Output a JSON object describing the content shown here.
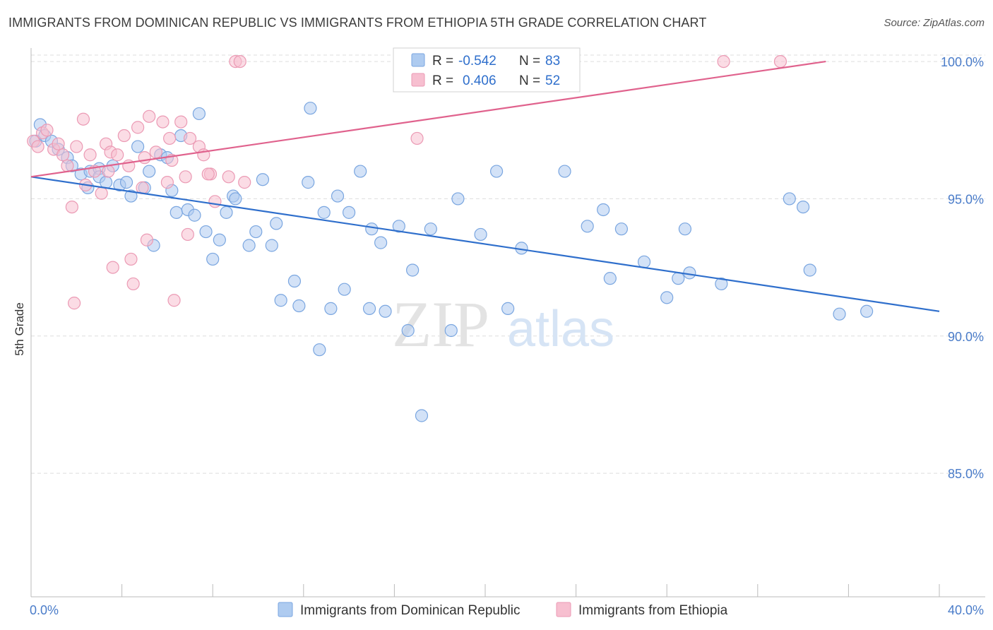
{
  "title": "IMMIGRANTS FROM DOMINICAN REPUBLIC VS IMMIGRANTS FROM ETHIOPIA 5TH GRADE CORRELATION CHART",
  "source": "Source: ZipAtlas.com",
  "watermark": {
    "zip": "ZIP",
    "atlas": "atlas"
  },
  "colors": {
    "blue_fill": "#aecbf0",
    "blue_stroke": "#7aa6e0",
    "blue_line": "#2f6fcc",
    "pink_fill": "#f7bfd0",
    "pink_stroke": "#eb9ab4",
    "pink_line": "#e0628d",
    "axis_text": "#4a7cc9",
    "grid": "#dddddd"
  },
  "chart_data": {
    "type": "scatter",
    "title": "IMMIGRANTS FROM DOMINICAN REPUBLIC VS IMMIGRANTS FROM ETHIOPIA 5TH GRADE CORRELATION CHART",
    "xlabel": "",
    "ylabel": "5th Grade",
    "xlim": [
      0,
      40
    ],
    "ylim": [
      80.5,
      100.8
    ],
    "x_tick_labels": [
      "0.0%",
      "40.0%"
    ],
    "y_ticks": [
      85,
      90,
      95,
      100
    ],
    "y_tick_labels": [
      "85.0%",
      "90.0%",
      "95.0%",
      "100.0%"
    ],
    "grid": true,
    "legend_position": "top-center",
    "stats": [
      {
        "r_label": "R =",
        "r_value": "-0.542",
        "n_label": "N =",
        "n_value": "83"
      },
      {
        "r_label": "R =",
        "r_value": "0.406",
        "n_label": "N =",
        "n_value": "52"
      }
    ],
    "series": [
      {
        "name": "Immigrants from Dominican Republic",
        "color": "#aecbf0",
        "trend": {
          "x": [
            0,
            40
          ],
          "y": [
            95.8,
            90.9
          ]
        },
        "points": [
          [
            0.2,
            97.1
          ],
          [
            0.4,
            97.7
          ],
          [
            0.6,
            97.3
          ],
          [
            0.9,
            97.1
          ],
          [
            1.2,
            96.8
          ],
          [
            1.6,
            96.5
          ],
          [
            1.8,
            96.2
          ],
          [
            2.2,
            95.9
          ],
          [
            2.5,
            95.4
          ],
          [
            2.6,
            96.0
          ],
          [
            3.0,
            96.1
          ],
          [
            3.0,
            95.8
          ],
          [
            3.3,
            95.6
          ],
          [
            3.6,
            96.2
          ],
          [
            3.9,
            95.5
          ],
          [
            4.2,
            95.6
          ],
          [
            4.4,
            95.1
          ],
          [
            4.7,
            96.9
          ],
          [
            5.0,
            95.4
          ],
          [
            5.2,
            96.0
          ],
          [
            5.4,
            93.3
          ],
          [
            5.7,
            96.6
          ],
          [
            6.0,
            96.5
          ],
          [
            6.2,
            95.3
          ],
          [
            6.4,
            94.5
          ],
          [
            6.6,
            97.3
          ],
          [
            6.9,
            94.6
          ],
          [
            7.2,
            94.4
          ],
          [
            7.4,
            98.1
          ],
          [
            7.7,
            93.8
          ],
          [
            8.0,
            92.8
          ],
          [
            8.3,
            93.5
          ],
          [
            8.6,
            94.5
          ],
          [
            8.9,
            95.1
          ],
          [
            9.0,
            95.0
          ],
          [
            9.6,
            93.3
          ],
          [
            9.9,
            93.8
          ],
          [
            10.2,
            95.7
          ],
          [
            10.6,
            93.3
          ],
          [
            10.8,
            94.1
          ],
          [
            11.0,
            91.3
          ],
          [
            11.6,
            92.0
          ],
          [
            11.8,
            91.1
          ],
          [
            12.2,
            95.6
          ],
          [
            12.3,
            98.3
          ],
          [
            12.7,
            89.5
          ],
          [
            12.9,
            94.5
          ],
          [
            13.2,
            91.0
          ],
          [
            13.5,
            95.1
          ],
          [
            13.8,
            91.7
          ],
          [
            14.0,
            94.5
          ],
          [
            14.5,
            96.0
          ],
          [
            14.9,
            91.0
          ],
          [
            15.0,
            93.9
          ],
          [
            15.4,
            93.4
          ],
          [
            15.6,
            90.9
          ],
          [
            16.2,
            94.0
          ],
          [
            16.6,
            90.2
          ],
          [
            16.8,
            92.4
          ],
          [
            17.2,
            87.1
          ],
          [
            17.6,
            93.9
          ],
          [
            18.5,
            90.2
          ],
          [
            18.8,
            95.0
          ],
          [
            19.8,
            93.7
          ],
          [
            20.5,
            96.0
          ],
          [
            21.0,
            91.0
          ],
          [
            21.6,
            93.2
          ],
          [
            23.5,
            96.0
          ],
          [
            24.5,
            94.0
          ],
          [
            25.2,
            94.6
          ],
          [
            25.5,
            92.1
          ],
          [
            26.0,
            93.9
          ],
          [
            27.0,
            92.7
          ],
          [
            28.0,
            91.4
          ],
          [
            28.5,
            92.1
          ],
          [
            28.8,
            93.9
          ],
          [
            29.0,
            92.3
          ],
          [
            30.4,
            91.9
          ],
          [
            33.4,
            95.0
          ],
          [
            34.0,
            94.7
          ],
          [
            34.3,
            92.4
          ],
          [
            35.6,
            90.8
          ],
          [
            36.8,
            90.9
          ]
        ]
      },
      {
        "name": "Immigrants from Ethiopia",
        "color": "#f7bfd0",
        "trend": {
          "x": [
            0,
            35.0
          ],
          "y": [
            95.8,
            100.0
          ]
        },
        "points": [
          [
            0.1,
            97.1
          ],
          [
            0.3,
            96.9
          ],
          [
            0.5,
            97.4
          ],
          [
            0.7,
            97.5
          ],
          [
            1.0,
            96.8
          ],
          [
            1.2,
            97.0
          ],
          [
            1.4,
            96.6
          ],
          [
            1.6,
            96.2
          ],
          [
            1.8,
            94.7
          ],
          [
            2.0,
            96.9
          ],
          [
            2.3,
            97.9
          ],
          [
            2.6,
            96.6
          ],
          [
            2.8,
            96.0
          ],
          [
            3.1,
            95.2
          ],
          [
            3.3,
            97.0
          ],
          [
            3.5,
            96.7
          ],
          [
            3.6,
            92.5
          ],
          [
            3.8,
            96.6
          ],
          [
            4.1,
            97.3
          ],
          [
            4.3,
            96.2
          ],
          [
            4.5,
            91.9
          ],
          [
            4.7,
            97.6
          ],
          [
            4.9,
            95.4
          ],
          [
            5.0,
            96.5
          ],
          [
            5.1,
            93.5
          ],
          [
            5.2,
            98.0
          ],
          [
            5.5,
            96.7
          ],
          [
            5.8,
            97.8
          ],
          [
            6.1,
            97.2
          ],
          [
            6.2,
            96.4
          ],
          [
            6.3,
            91.3
          ],
          [
            6.6,
            97.8
          ],
          [
            6.8,
            95.8
          ],
          [
            6.9,
            93.7
          ],
          [
            7.0,
            97.2
          ],
          [
            7.4,
            96.9
          ],
          [
            7.6,
            96.6
          ],
          [
            7.9,
            95.9
          ],
          [
            8.1,
            94.9
          ],
          [
            8.7,
            95.8
          ],
          [
            9.0,
            100.0
          ],
          [
            9.4,
            95.6
          ],
          [
            9.2,
            100.0
          ],
          [
            17.0,
            97.2
          ],
          [
            30.5,
            100.0
          ],
          [
            33.0,
            100.0
          ],
          [
            1.9,
            91.2
          ],
          [
            4.4,
            92.8
          ],
          [
            2.4,
            95.5
          ],
          [
            7.8,
            95.9
          ],
          [
            3.4,
            96.0
          ],
          [
            6.0,
            95.6
          ]
        ]
      }
    ]
  },
  "legend": [
    {
      "label": "Immigrants from Dominican Republic"
    },
    {
      "label": "Immigrants from Ethiopia"
    }
  ]
}
